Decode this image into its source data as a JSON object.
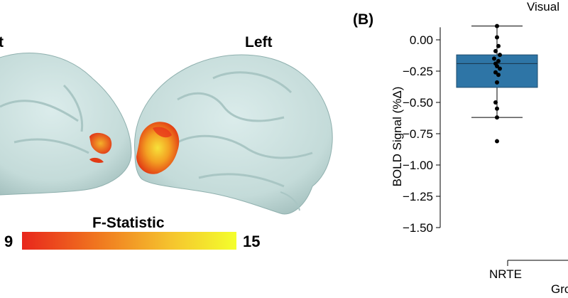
{
  "panel_a": {
    "label_right_fragment": "t",
    "label_left": "Left",
    "colorbar": {
      "title": "F-Statistic",
      "min_label": "9",
      "max_label": "15",
      "colors": [
        "#e8261c",
        "#f0761f",
        "#f5c52e",
        "#f4ff2c"
      ]
    },
    "brain_color": "#cfe3e2"
  },
  "panel_b": {
    "label": "(B)",
    "title_fragment": "Visual",
    "x_category_label": "NRTE",
    "x_axis_fragment": "Gro"
  },
  "chart_data": {
    "type": "box",
    "title": "Visual",
    "ylabel": "BOLD Signal (%Δ)",
    "xlabel": "Gro",
    "ylim": [
      -1.5,
      0.1
    ],
    "yticks": [
      0.0,
      -0.25,
      -0.5,
      -0.75,
      -1.0,
      -1.25,
      -1.5
    ],
    "ytick_labels": [
      "0.00",
      "−0.25",
      "−0.50",
      "−0.75",
      "−1.00",
      "−1.25",
      "−1.50"
    ],
    "categories": [
      "NRTE"
    ],
    "box": {
      "color": "#2e75a6",
      "median": -0.19,
      "q1": -0.38,
      "q3": -0.12,
      "whisker_low": -0.62,
      "whisker_high": 0.11
    },
    "points": [
      0.11,
      0.02,
      -0.05,
      -0.09,
      -0.12,
      -0.15,
      -0.17,
      -0.19,
      -0.21,
      -0.23,
      -0.26,
      -0.28,
      -0.34,
      -0.5,
      -0.55,
      -0.62,
      -0.81
    ]
  }
}
